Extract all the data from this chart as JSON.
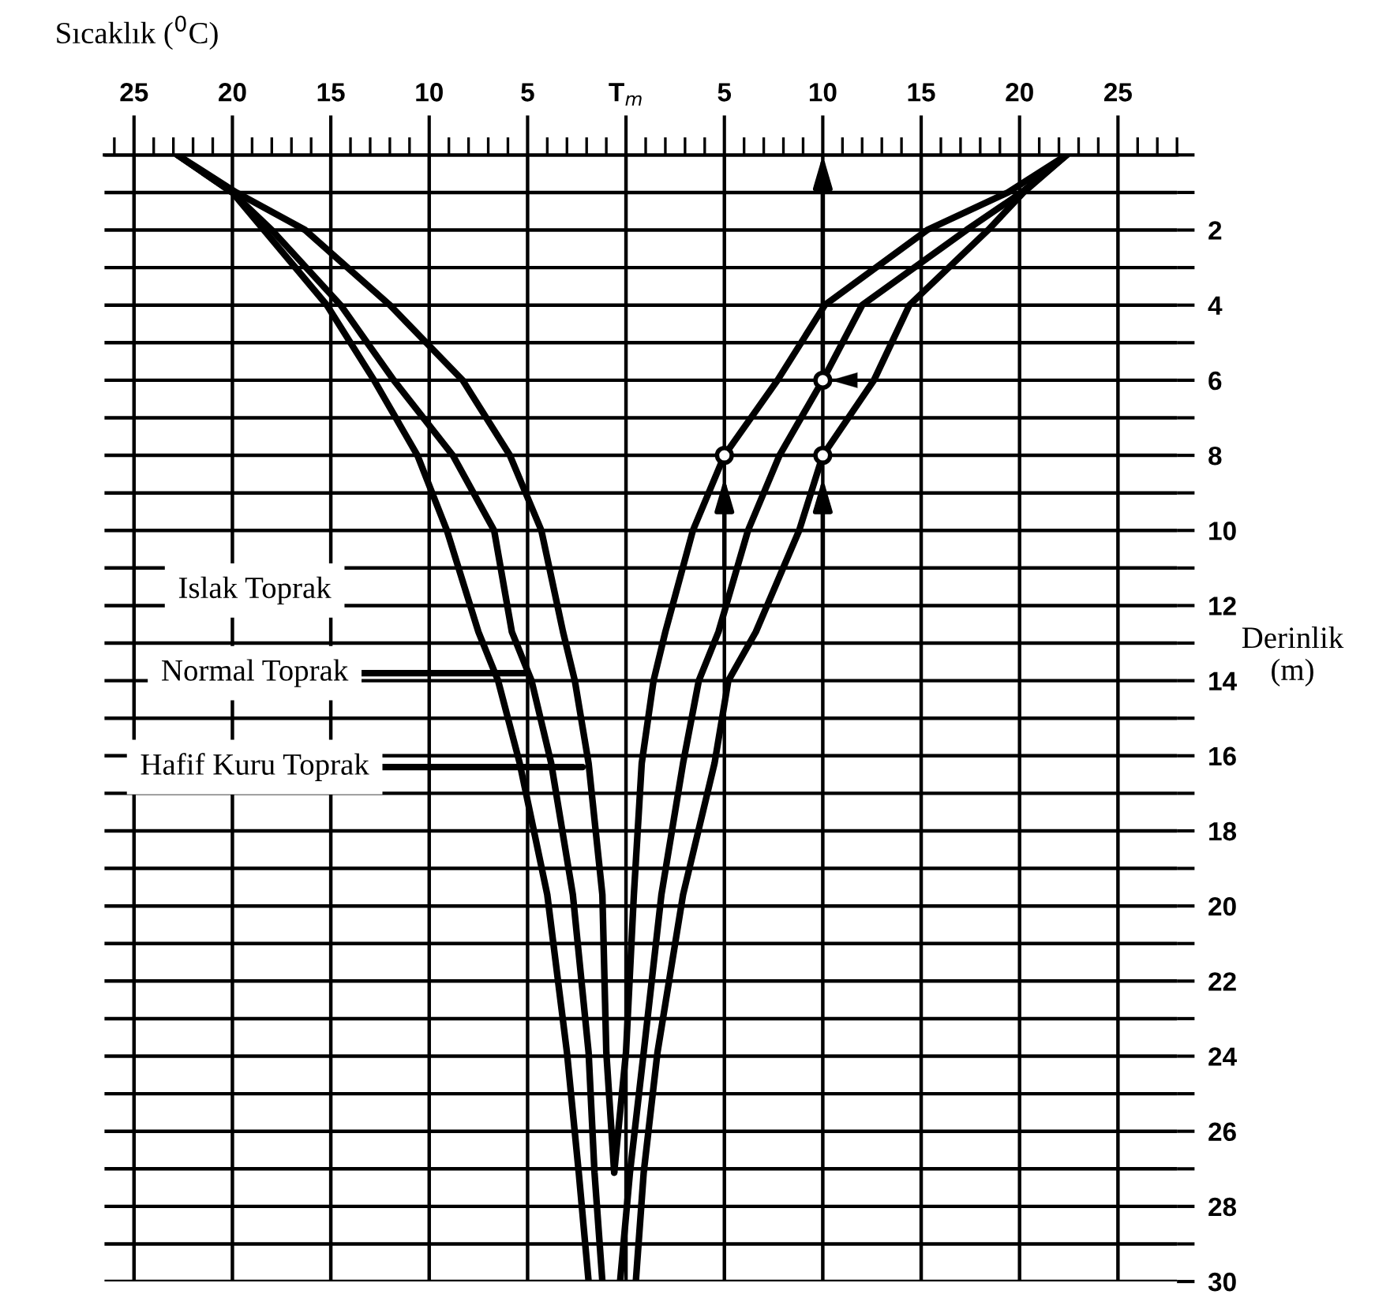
{
  "chart_data": {
    "type": "line",
    "xlabel": "Sıcaklık ($^{0}$C)",
    "ylabel": "Derinlik\n(m)",
    "xlim": [
      -26.5,
      28
    ],
    "ylim": [
      30,
      0
    ],
    "xticks": [
      {
        "value": -25,
        "label": "25"
      },
      {
        "value": -20,
        "label": "20"
      },
      {
        "value": -15,
        "label": "15"
      },
      {
        "value": -10,
        "label": "10"
      },
      {
        "value": -5,
        "label": "5"
      },
      {
        "value": 0,
        "label": "T$_{m}$"
      },
      5,
      10,
      15,
      20,
      25
    ],
    "yticks": [
      {
        "value": 0,
        "label": null
      },
      {
        "value": 1,
        "label": null
      },
      2,
      {
        "value": 3,
        "label": null
      },
      4,
      {
        "value": 5,
        "label": null
      },
      6,
      {
        "value": 7,
        "label": null
      },
      8,
      {
        "value": 9,
        "label": null
      },
      10,
      {
        "value": 11,
        "label": null
      },
      12,
      {
        "value": 13,
        "label": null
      },
      14,
      {
        "value": 15,
        "label": null
      },
      16,
      {
        "value": 17,
        "label": null
      },
      18,
      {
        "value": 19,
        "label": null
      },
      20,
      {
        "value": 21,
        "label": null
      },
      22,
      {
        "value": 23,
        "label": null
      },
      24,
      {
        "value": 25,
        "label": null
      },
      26,
      {
        "value": 27,
        "label": null
      },
      28,
      {
        "value": 29,
        "label": null
      },
      30
    ],
    "grid": true,
    "line_style": "solid",
    "marker": "none",
    "series": [
      {
        "color": "#000000",
        "x": [
          -22.8,
          -20.0,
          -18.4,
          -15.2,
          -12.8,
          -10.6,
          -9.1,
          -7.5,
          -6.5,
          -5.4,
          -4.0,
          -3.0,
          -2.4,
          -1.9
        ],
        "values": [
          0,
          1,
          2,
          4,
          6,
          8,
          10,
          12.7,
          14,
          16.2,
          19.7,
          23.9,
          27.1,
          30
        ]
      },
      {
        "color": "#000000",
        "x": [
          -22.8,
          -20.0,
          -18.0,
          -14.5,
          -11.8,
          -8.8,
          -6.7,
          -5.8,
          -4.8,
          -3.8,
          -2.7,
          -1.9,
          -1.6,
          -1.2
        ],
        "values": [
          0,
          1,
          2,
          4,
          6,
          8,
          10,
          12.7,
          14,
          16.2,
          19.7,
          23.9,
          27.1,
          30
        ]
      },
      {
        "color": "#000000",
        "x": [
          -22.8,
          -19.8,
          -16.3,
          -12.0,
          -8.3,
          -5.9,
          -4.3,
          -3.2,
          -2.6,
          -1.9,
          -1.2,
          -1.0,
          -0.6
        ],
        "values": [
          0,
          1,
          2,
          4,
          6,
          8,
          10,
          12.7,
          14,
          16.2,
          19.7,
          23.9,
          27.1
        ]
      },
      {
        "color": "#000000",
        "x": [
          22.4,
          19.4,
          15.3,
          10.1,
          7.7,
          5,
          3.4,
          2.0,
          1.4,
          0.8,
          0.4,
          0.0,
          -0.6
        ],
        "values": [
          0,
          1,
          2,
          4,
          6,
          8,
          10,
          12.7,
          14,
          16.2,
          19.7,
          23.9,
          27.1
        ]
      },
      {
        "color": "#000000",
        "x": [
          22.4,
          20.1,
          17.3,
          12.0,
          10,
          7.8,
          6.2,
          4.7,
          3.7,
          2.9,
          1.8,
          0.9,
          0.2,
          -0.3
        ],
        "values": [
          0,
          1,
          2,
          4,
          6,
          8,
          10,
          12.7,
          14,
          16.2,
          19.7,
          23.9,
          27.1,
          30
        ]
      },
      {
        "color": "#000000",
        "x": [
          22.4,
          20.2,
          18.4,
          14.4,
          12.6,
          10,
          8.8,
          6.6,
          5.2,
          4.5,
          2.9,
          1.6,
          0.9,
          0.5
        ],
        "values": [
          0,
          1,
          2,
          4,
          6,
          8,
          10,
          12.7,
          14,
          16.2,
          19.7,
          23.9,
          27.1,
          30
        ]
      },
      {
        "type": "scatter",
        "marker": "circle",
        "color": "#000000",
        "x": [
          10,
          5,
          10
        ],
        "values": [
          6,
          8,
          8
        ]
      }
    ],
    "annotations": [
      "Islak Toprak",
      {
        "text": "Normal Toprak",
        "x": -5.1,
        "y": 13.8
      },
      {
        "text": "Hafif Kuru Toprak",
        "x": -2.2,
        "y": 16.3
      }
    ]
  }
}
